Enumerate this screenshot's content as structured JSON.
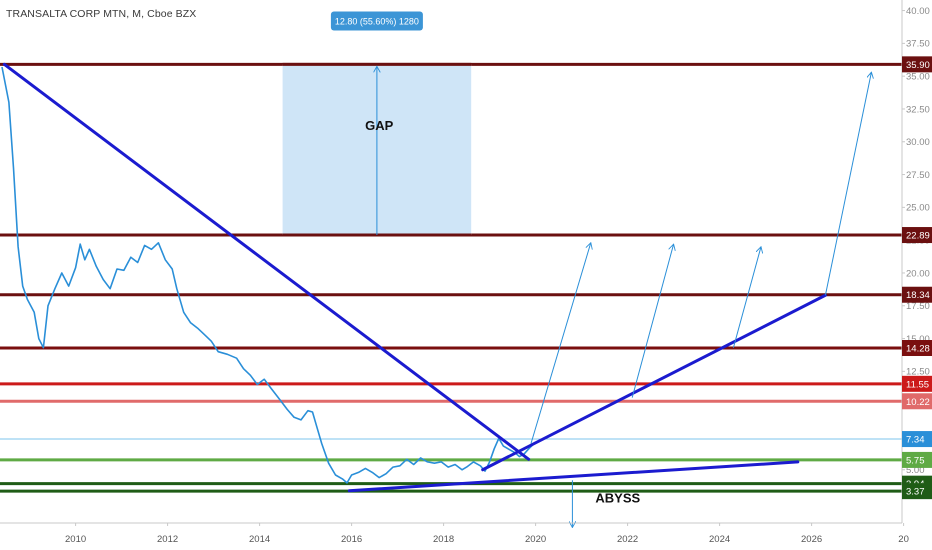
{
  "chart_data": {
    "type": "line",
    "title": "TRANSALTA CORP MTN, M, Cboe BZX",
    "x_ticks": [
      "2010",
      "2012",
      "2014",
      "2016",
      "2018",
      "2020",
      "2022",
      "2024",
      "2026",
      "20"
    ],
    "y_ticks": [
      "40.00",
      "37.50",
      "35.00",
      "32.50",
      "30.00",
      "27.50",
      "25.00",
      "22.50",
      "20.00",
      "17.50",
      "15.00",
      "12.50",
      "10.00",
      "7.50",
      "5.00"
    ],
    "xlim": [
      2008.4,
      2028.1
    ],
    "ylim": [
      2.0,
      40.5
    ],
    "grid": false,
    "series": [
      {
        "color": "#2a8fd8",
        "points": [
          [
            2008.4,
            35.7
          ],
          [
            2008.55,
            33.0
          ],
          [
            2008.65,
            28.0
          ],
          [
            2008.75,
            22.0
          ],
          [
            2008.85,
            19.0
          ],
          [
            2008.95,
            18.0
          ],
          [
            2009.1,
            17.0
          ],
          [
            2009.2,
            15.0
          ],
          [
            2009.3,
            14.3
          ],
          [
            2009.4,
            17.5
          ],
          [
            2009.55,
            18.8
          ],
          [
            2009.7,
            20.0
          ],
          [
            2009.85,
            19.0
          ],
          [
            2010.0,
            20.4
          ],
          [
            2010.1,
            22.2
          ],
          [
            2010.2,
            21.0
          ],
          [
            2010.3,
            21.8
          ],
          [
            2010.45,
            20.5
          ],
          [
            2010.6,
            19.5
          ],
          [
            2010.75,
            18.8
          ],
          [
            2010.9,
            20.3
          ],
          [
            2011.05,
            20.2
          ],
          [
            2011.2,
            21.2
          ],
          [
            2011.35,
            20.8
          ],
          [
            2011.5,
            22.1
          ],
          [
            2011.65,
            21.8
          ],
          [
            2011.8,
            22.3
          ],
          [
            2011.95,
            21.0
          ],
          [
            2012.1,
            20.3
          ],
          [
            2012.2,
            18.8
          ],
          [
            2012.35,
            17.0
          ],
          [
            2012.5,
            16.2
          ],
          [
            2012.65,
            15.8
          ],
          [
            2012.8,
            15.3
          ],
          [
            2012.95,
            14.8
          ],
          [
            2013.1,
            14.0
          ],
          [
            2013.3,
            13.8
          ],
          [
            2013.5,
            13.5
          ],
          [
            2013.65,
            12.7
          ],
          [
            2013.8,
            12.2
          ],
          [
            2013.95,
            11.5
          ],
          [
            2014.1,
            11.9
          ],
          [
            2014.25,
            11.2
          ],
          [
            2014.45,
            10.3
          ],
          [
            2014.6,
            9.6
          ],
          [
            2014.75,
            9.0
          ],
          [
            2014.9,
            8.8
          ],
          [
            2015.05,
            9.5
          ],
          [
            2015.15,
            9.4
          ],
          [
            2015.25,
            8.2
          ],
          [
            2015.35,
            7.0
          ],
          [
            2015.5,
            5.5
          ],
          [
            2015.65,
            4.6
          ],
          [
            2015.8,
            4.3
          ],
          [
            2015.9,
            4.0
          ],
          [
            2016.0,
            4.6
          ],
          [
            2016.15,
            4.8
          ],
          [
            2016.3,
            5.1
          ],
          [
            2016.45,
            4.8
          ],
          [
            2016.6,
            4.4
          ],
          [
            2016.75,
            4.7
          ],
          [
            2016.9,
            5.2
          ],
          [
            2017.05,
            5.3
          ],
          [
            2017.2,
            5.8
          ],
          [
            2017.35,
            5.4
          ],
          [
            2017.5,
            5.9
          ],
          [
            2017.65,
            5.6
          ],
          [
            2017.8,
            5.5
          ],
          [
            2017.95,
            5.6
          ],
          [
            2018.1,
            5.2
          ],
          [
            2018.25,
            5.4
          ],
          [
            2018.4,
            5.0
          ],
          [
            2018.5,
            5.2
          ],
          [
            2018.65,
            5.6
          ],
          [
            2018.8,
            5.3
          ],
          [
            2018.9,
            4.9
          ],
          [
            2019.0,
            5.6
          ],
          [
            2019.1,
            6.6
          ],
          [
            2019.2,
            7.4
          ],
          [
            2019.3,
            6.8
          ],
          [
            2019.45,
            6.5
          ],
          [
            2019.55,
            6.3
          ],
          [
            2019.65,
            6.0
          ],
          [
            2019.75,
            6.2
          ],
          [
            2019.85,
            6.6
          ],
          [
            2020.0,
            7.1
          ]
        ]
      }
    ],
    "levels": [
      {
        "value": 35.9,
        "label": "35.90",
        "color": "#6b1010",
        "tag": "#6b1010"
      },
      {
        "value": 22.89,
        "label": "22.89",
        "color": "#6b1010",
        "tag": "#6b1010"
      },
      {
        "value": 18.34,
        "label": "18.34",
        "color": "#6b1010",
        "tag": "#6b1010"
      },
      {
        "value": 14.28,
        "label": "14.28",
        "color": "#7a0f0f",
        "tag": "#7a0f0f"
      },
      {
        "value": 11.55,
        "label": "11.55",
        "color": "#cc1a1a",
        "tag": "#cc1a1a"
      },
      {
        "value": 10.22,
        "label": "10.22",
        "color": "#e06a6a",
        "tag": "#e06a6a"
      },
      {
        "value": 7.34,
        "label": "7.34",
        "color": "#7cc4ee",
        "tag": "#2a8fd8"
      },
      {
        "value": 5.75,
        "label": "5.75",
        "color": "#5faa45",
        "tag": "#5faa45"
      },
      {
        "value": 3.94,
        "label": "3.94",
        "color": "#1f5c16",
        "tag": "#1f5c16"
      },
      {
        "value": 3.37,
        "label": "3.37",
        "color": "#1f5c16",
        "tag": "#1f5c16"
      }
    ],
    "trendlines": [
      {
        "from": [
          2008.45,
          35.9
        ],
        "to": [
          2019.85,
          5.8
        ],
        "color": "#1b1bcf"
      },
      {
        "from": [
          2015.95,
          3.4
        ],
        "to": [
          2025.7,
          5.6
        ],
        "color": "#1b1bcf"
      },
      {
        "from": [
          2018.85,
          5.0
        ],
        "to": [
          2026.3,
          18.3
        ],
        "color": "#1b1bcf"
      }
    ],
    "arrows": [
      {
        "from": [
          2019.9,
          7.0
        ],
        "to": [
          2021.2,
          22.3
        ]
      },
      {
        "from": [
          2022.1,
          10.5
        ],
        "to": [
          2023.0,
          22.2
        ]
      },
      {
        "from": [
          2024.3,
          14.3
        ],
        "to": [
          2024.9,
          22.0
        ]
      },
      {
        "from": [
          2026.3,
          18.3
        ],
        "to": [
          2027.3,
          35.3
        ]
      }
    ],
    "gap_box": {
      "x0": 2014.5,
      "x1": 2018.6,
      "y0": 22.89,
      "y1": 35.9,
      "label": "GAP",
      "label_at": [
        2016.6,
        30.9
      ]
    },
    "measure": {
      "x": 2016.55,
      "label": "12.80 (55.60%) 1280",
      "at": [
        2016.55,
        39.2
      ]
    },
    "abyss": {
      "label": "ABYSS",
      "arrow_x": 2020.8,
      "arrow_from": 4.2,
      "arrow_to": 0.6,
      "label_at": [
        2021.3,
        2.8
      ]
    }
  }
}
